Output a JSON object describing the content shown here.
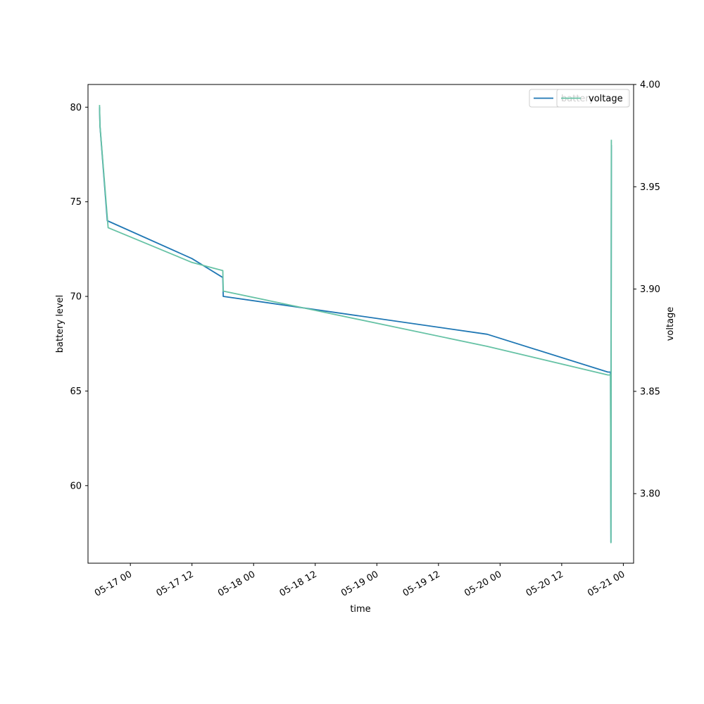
{
  "chart_data": {
    "type": "line",
    "xlabel": "time",
    "ylabel_left": "battery level",
    "ylabel_right": "voltage",
    "x_ticks": [
      "05-17 00",
      "05-17 12",
      "05-18 00",
      "05-18 12",
      "05-19 00",
      "05-19 12",
      "05-20 00",
      "05-20 12",
      "05-21 00"
    ],
    "x_tick_times": [
      "2023-05-17T00:00",
      "2023-05-17T12:00",
      "2023-05-18T00:00",
      "2023-05-18T12:00",
      "2023-05-19T00:00",
      "2023-05-19T12:00",
      "2023-05-20T00:00",
      "2023-05-20T12:00",
      "2023-05-21T00:00"
    ],
    "xlim": [
      "2023-05-16T15:45",
      "2023-05-21T02:00"
    ],
    "yleft_ticks": [
      60,
      65,
      70,
      75,
      80
    ],
    "yleft_lim": [
      55.9,
      81.2
    ],
    "yright_ticks": [
      "3.80",
      "3.85",
      "3.90",
      "3.95",
      "4.00"
    ],
    "yright_lim": [
      3.766,
      4.0
    ],
    "grid": false,
    "legend_left": {
      "placement": "top-right",
      "entries": [
        {
          "name": "battery",
          "color": "#1f77b4"
        }
      ]
    },
    "legend_right": {
      "placement": "top-right",
      "entries": [
        {
          "name": "voltage",
          "color": "#66c2a5"
        }
      ]
    },
    "series": [
      {
        "name": "battery",
        "axis": "left",
        "color": "#1f77b4",
        "points": [
          {
            "x": "2023-05-16T18:00",
            "y": 80
          },
          {
            "x": "2023-05-16T18:05",
            "y": 79
          },
          {
            "x": "2023-05-16T19:30",
            "y": 74
          },
          {
            "x": "2023-05-17T12:00",
            "y": 72
          },
          {
            "x": "2023-05-17T18:00",
            "y": 71
          },
          {
            "x": "2023-05-17T18:05",
            "y": 70
          },
          {
            "x": "2023-05-19T21:30",
            "y": 68
          },
          {
            "x": "2023-05-20T21:00",
            "y": 66
          },
          {
            "x": "2023-05-20T21:30",
            "y": 66
          },
          {
            "x": "2023-05-20T21:35",
            "y": 57
          },
          {
            "x": "2023-05-20T21:40",
            "y": 78
          }
        ]
      },
      {
        "name": "voltage",
        "axis": "right",
        "color": "#66c2a5",
        "points": [
          {
            "x": "2023-05-16T18:00",
            "y": 3.99
          },
          {
            "x": "2023-05-16T18:05",
            "y": 3.98
          },
          {
            "x": "2023-05-16T19:40",
            "y": 3.93
          },
          {
            "x": "2023-05-17T12:00",
            "y": 3.913
          },
          {
            "x": "2023-05-17T18:00",
            "y": 3.909
          },
          {
            "x": "2023-05-17T18:05",
            "y": 3.899
          },
          {
            "x": "2023-05-19T21:30",
            "y": 3.872
          },
          {
            "x": "2023-05-20T21:00",
            "y": 3.858
          },
          {
            "x": "2023-05-20T21:30",
            "y": 3.858
          },
          {
            "x": "2023-05-20T21:35",
            "y": 3.776
          },
          {
            "x": "2023-05-20T21:40",
            "y": 3.973
          }
        ]
      }
    ]
  }
}
